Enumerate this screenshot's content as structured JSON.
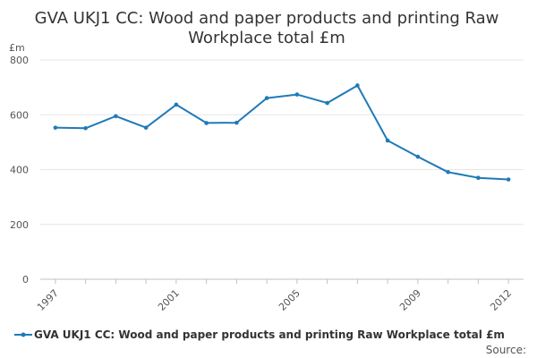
{
  "chart_data": {
    "type": "line",
    "title_line1": "GVA UKJ1 CC: Wood and paper products and printing Raw",
    "title_line2": "Workplace total £m",
    "y_unit": "£m",
    "ylim": [
      0,
      800
    ],
    "y_ticks": [
      "0",
      "200",
      "400",
      "600",
      "800"
    ],
    "x_tick_labels": [
      "1997",
      "2001",
      "2005",
      "2009",
      "2012"
    ],
    "grid": true,
    "legend_position": "bottom-left",
    "color": "#1f7ab8",
    "series": [
      {
        "name": "GVA UKJ1 CC: Wood and paper products and printing Raw Workplace total £m",
        "x": [
          1997,
          1998,
          1999,
          2000,
          2001,
          2002,
          2003,
          2004,
          2005,
          2006,
          2007,
          2008,
          2009,
          2010,
          2011,
          2012
        ],
        "values": [
          553,
          551,
          595,
          553,
          637,
          570,
          571,
          661,
          674,
          643,
          707,
          506,
          447,
          391,
          370,
          364
        ]
      }
    ],
    "source": "Source:"
  }
}
